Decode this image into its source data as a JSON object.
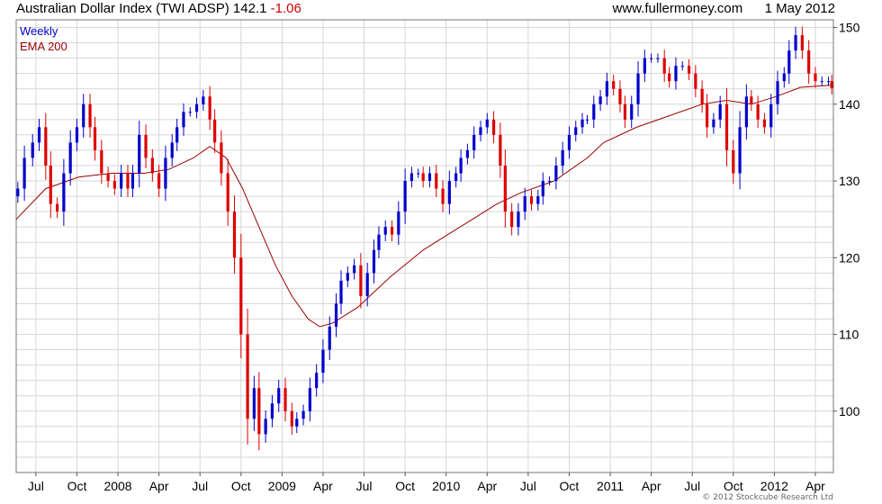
{
  "header": {
    "title": "Australian Dollar Index (TWI ADSP)",
    "price": "142.1",
    "change": "-1.06",
    "site": "www.fullermoney.com",
    "date": "1 May 2012"
  },
  "footer": {
    "copyright": "© 2012 Stockcube Research Ltd"
  },
  "colors": {
    "up": "#0000cc",
    "down": "#dd0000",
    "ema": "#990000",
    "grid": "#d6d6d6"
  },
  "chart_data": {
    "type": "candlestick",
    "title": "Australian Dollar Index (TWI ADSP)",
    "frequency": "Weekly",
    "legend": [
      "Weekly",
      "EMA 200"
    ],
    "legend_position": "top-left",
    "y_axis_side": "right",
    "ylim": [
      92,
      151
    ],
    "yticks": [
      100,
      110,
      120,
      130,
      140,
      150
    ],
    "x_range": [
      2007.42,
      2012.4
    ],
    "xticks": [
      {
        "t": 2007.54,
        "label": "Jul"
      },
      {
        "t": 2007.79,
        "label": "Oct"
      },
      {
        "t": 2008.04,
        "label": "2008"
      },
      {
        "t": 2008.29,
        "label": "Apr"
      },
      {
        "t": 2008.54,
        "label": "Jul"
      },
      {
        "t": 2008.79,
        "label": "Oct"
      },
      {
        "t": 2009.04,
        "label": "2009"
      },
      {
        "t": 2009.29,
        "label": "Apr"
      },
      {
        "t": 2009.54,
        "label": "Jul"
      },
      {
        "t": 2009.79,
        "label": "Oct"
      },
      {
        "t": 2010.04,
        "label": "2010"
      },
      {
        "t": 2010.29,
        "label": "Apr"
      },
      {
        "t": 2010.54,
        "label": "Jul"
      },
      {
        "t": 2010.79,
        "label": "Oct"
      },
      {
        "t": 2011.04,
        "label": "2011"
      },
      {
        "t": 2011.29,
        "label": "Apr"
      },
      {
        "t": 2011.54,
        "label": "Jul"
      },
      {
        "t": 2011.79,
        "label": "Oct"
      },
      {
        "t": 2012.04,
        "label": "2012"
      },
      {
        "t": 2012.29,
        "label": "Apr"
      }
    ],
    "series": [
      {
        "name": "Weekly",
        "style": "candles",
        "points": [
          [
            2007.43,
            129
          ],
          [
            2007.47,
            133
          ],
          [
            2007.52,
            135
          ],
          [
            2007.56,
            137
          ],
          [
            2007.6,
            132
          ],
          [
            2007.63,
            127
          ],
          [
            2007.67,
            126
          ],
          [
            2007.71,
            131
          ],
          [
            2007.75,
            135
          ],
          [
            2007.79,
            137
          ],
          [
            2007.83,
            140
          ],
          [
            2007.87,
            137
          ],
          [
            2007.9,
            134
          ],
          [
            2007.94,
            131
          ],
          [
            2007.98,
            130
          ],
          [
            2008.02,
            129
          ],
          [
            2008.06,
            131
          ],
          [
            2008.1,
            129
          ],
          [
            2008.13,
            131
          ],
          [
            2008.17,
            136
          ],
          [
            2008.21,
            133
          ],
          [
            2008.25,
            131
          ],
          [
            2008.29,
            129
          ],
          [
            2008.33,
            133
          ],
          [
            2008.37,
            135
          ],
          [
            2008.4,
            137
          ],
          [
            2008.44,
            139
          ],
          [
            2008.48,
            139
          ],
          [
            2008.52,
            140
          ],
          [
            2008.56,
            141
          ],
          [
            2008.6,
            138
          ],
          [
            2008.63,
            135
          ],
          [
            2008.67,
            131
          ],
          [
            2008.71,
            126
          ],
          [
            2008.75,
            120
          ],
          [
            2008.79,
            110
          ],
          [
            2008.83,
            99
          ],
          [
            2008.87,
            103
          ],
          [
            2008.9,
            97
          ],
          [
            2008.94,
            99
          ],
          [
            2008.98,
            101
          ],
          [
            2009.02,
            103
          ],
          [
            2009.06,
            100
          ],
          [
            2009.1,
            98
          ],
          [
            2009.13,
            99
          ],
          [
            2009.17,
            100
          ],
          [
            2009.21,
            103
          ],
          [
            2009.25,
            105
          ],
          [
            2009.29,
            108
          ],
          [
            2009.33,
            111
          ],
          [
            2009.37,
            114
          ],
          [
            2009.4,
            117
          ],
          [
            2009.44,
            118
          ],
          [
            2009.48,
            119
          ],
          [
            2009.52,
            115
          ],
          [
            2009.56,
            118
          ],
          [
            2009.6,
            121
          ],
          [
            2009.63,
            123
          ],
          [
            2009.67,
            124
          ],
          [
            2009.71,
            123
          ],
          [
            2009.75,
            126
          ],
          [
            2009.79,
            130
          ],
          [
            2009.83,
            131
          ],
          [
            2009.87,
            131
          ],
          [
            2009.9,
            130
          ],
          [
            2009.94,
            131
          ],
          [
            2009.98,
            129
          ],
          [
            2010.02,
            127
          ],
          [
            2010.06,
            130
          ],
          [
            2010.1,
            131
          ],
          [
            2010.13,
            133
          ],
          [
            2010.17,
            134
          ],
          [
            2010.21,
            136
          ],
          [
            2010.25,
            137
          ],
          [
            2010.29,
            138
          ],
          [
            2010.33,
            136
          ],
          [
            2010.37,
            132
          ],
          [
            2010.4,
            126
          ],
          [
            2010.44,
            124
          ],
          [
            2010.48,
            126
          ],
          [
            2010.52,
            128
          ],
          [
            2010.56,
            127
          ],
          [
            2010.6,
            128
          ],
          [
            2010.63,
            130
          ],
          [
            2010.67,
            130
          ],
          [
            2010.71,
            132
          ],
          [
            2010.75,
            134
          ],
          [
            2010.79,
            136
          ],
          [
            2010.83,
            137
          ],
          [
            2010.87,
            138
          ],
          [
            2010.9,
            138
          ],
          [
            2010.94,
            140
          ],
          [
            2010.98,
            141
          ],
          [
            2011.02,
            143
          ],
          [
            2011.06,
            142
          ],
          [
            2011.1,
            140
          ],
          [
            2011.13,
            138
          ],
          [
            2011.17,
            140
          ],
          [
            2011.21,
            144
          ],
          [
            2011.25,
            146
          ],
          [
            2011.29,
            146
          ],
          [
            2011.33,
            146
          ],
          [
            2011.37,
            144
          ],
          [
            2011.4,
            143
          ],
          [
            2011.44,
            145
          ],
          [
            2011.48,
            145
          ],
          [
            2011.52,
            144
          ],
          [
            2011.56,
            142
          ],
          [
            2011.6,
            140
          ],
          [
            2011.63,
            137
          ],
          [
            2011.67,
            138
          ],
          [
            2011.71,
            140
          ],
          [
            2011.75,
            134
          ],
          [
            2011.79,
            131
          ],
          [
            2011.83,
            137
          ],
          [
            2011.87,
            141
          ],
          [
            2011.9,
            140
          ],
          [
            2011.94,
            138
          ],
          [
            2011.98,
            137
          ],
          [
            2012.02,
            140
          ],
          [
            2012.06,
            143
          ],
          [
            2012.1,
            144
          ],
          [
            2012.13,
            147
          ],
          [
            2012.17,
            149
          ],
          [
            2012.21,
            147
          ],
          [
            2012.25,
            144
          ],
          [
            2012.29,
            143
          ],
          [
            2012.33,
            143
          ],
          [
            2012.37,
            143
          ],
          [
            2012.39,
            142.1
          ]
        ]
      },
      {
        "name": "EMA 200",
        "style": "line",
        "points": [
          [
            2007.42,
            125
          ],
          [
            2007.6,
            129
          ],
          [
            2007.8,
            130.5
          ],
          [
            2008.0,
            131
          ],
          [
            2008.2,
            131
          ],
          [
            2008.35,
            131.5
          ],
          [
            2008.5,
            133
          ],
          [
            2008.6,
            134.5
          ],
          [
            2008.7,
            133
          ],
          [
            2008.8,
            129
          ],
          [
            2008.9,
            124
          ],
          [
            2009.0,
            119
          ],
          [
            2009.1,
            115
          ],
          [
            2009.2,
            112
          ],
          [
            2009.27,
            111
          ],
          [
            2009.35,
            111.5
          ],
          [
            2009.5,
            113.5
          ],
          [
            2009.7,
            117.5
          ],
          [
            2009.9,
            121
          ],
          [
            2010.05,
            123
          ],
          [
            2010.2,
            125
          ],
          [
            2010.35,
            127
          ],
          [
            2010.5,
            128.5
          ],
          [
            2010.7,
            130
          ],
          [
            2010.9,
            133
          ],
          [
            2011.0,
            135
          ],
          [
            2011.2,
            137
          ],
          [
            2011.4,
            138.5
          ],
          [
            2011.6,
            140
          ],
          [
            2011.75,
            140.5
          ],
          [
            2011.9,
            140
          ],
          [
            2012.05,
            141
          ],
          [
            2012.2,
            142.2
          ],
          [
            2012.4,
            142.5
          ]
        ]
      }
    ]
  }
}
